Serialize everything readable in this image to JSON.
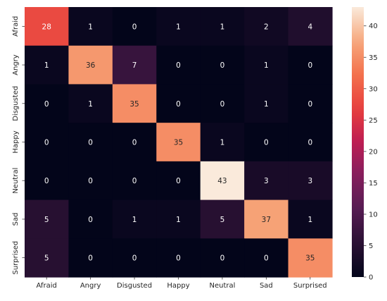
{
  "chart_data": {
    "type": "heatmap",
    "title": "",
    "xlabel": "",
    "ylabel": "",
    "x_categories": [
      "Afraid",
      "Angry",
      "Disgusted",
      "Happy",
      "Neutral",
      "Sad",
      "Surprised"
    ],
    "y_categories": [
      "Afraid",
      "Angry",
      "Disgusted",
      "Happy",
      "Neutral",
      "Sad",
      "Surprised"
    ],
    "values": [
      [
        28,
        1,
        0,
        1,
        1,
        2,
        4
      ],
      [
        1,
        36,
        7,
        0,
        0,
        1,
        0
      ],
      [
        0,
        1,
        35,
        0,
        0,
        1,
        0
      ],
      [
        0,
        0,
        0,
        35,
        1,
        0,
        0
      ],
      [
        0,
        0,
        0,
        0,
        43,
        3,
        3
      ],
      [
        5,
        0,
        1,
        1,
        5,
        37,
        1
      ],
      [
        5,
        0,
        0,
        0,
        0,
        0,
        35
      ]
    ],
    "colorbar": {
      "min": 0,
      "max": 43,
      "ticks": [
        0,
        5,
        10,
        15,
        20,
        25,
        30,
        35,
        40
      ],
      "colormap": "rocket"
    },
    "annotations": "cell counts shown in each cell",
    "grid": false
  }
}
